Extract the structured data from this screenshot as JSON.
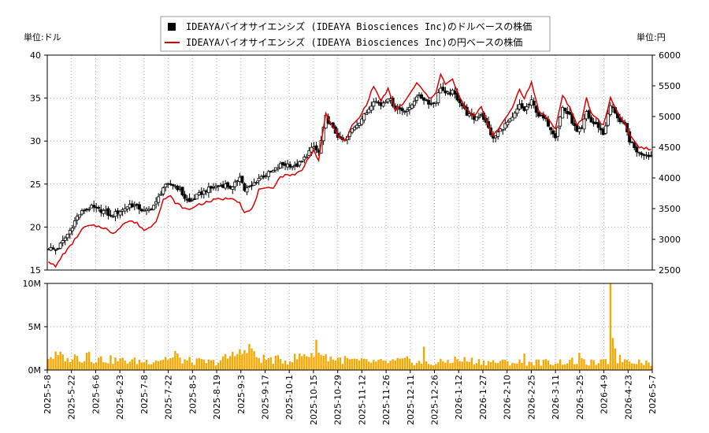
{
  "chart_data": {
    "type": "candlestick-line-bar",
    "legend": {
      "placement": "top-center",
      "items": [
        {
          "label": "IDEAYAバイオサイエンシズ (IDEAYA Biosciences Inc)のドルベースの株価",
          "symbol": "square",
          "color": "#000000"
        },
        {
          "label": "IDEAYAバイオサイエンシズ (IDEAYA Biosciences Inc)の円ベースの株価",
          "symbol": "line",
          "color": "#dd0000"
        }
      ]
    },
    "left_unit_label": "単位:ドル",
    "right_unit_label": "単位:円",
    "price_panel": {
      "y_left": {
        "min": 15,
        "max": 40,
        "ticks": [
          "15",
          "20",
          "25",
          "30",
          "35",
          "40"
        ]
      },
      "y_right": {
        "min": 2500,
        "max": 6000,
        "ticks": [
          "2500",
          "3000",
          "3500",
          "4000",
          "4500",
          "5000",
          "5500",
          "6000"
        ]
      },
      "grid": true
    },
    "volume_panel": {
      "y": {
        "min": 0,
        "max": 10000000,
        "ticks": [
          "0M",
          "5M",
          "10M"
        ]
      },
      "bar_color": "#f5a800",
      "grid": true
    },
    "x_tick_labels": [
      "2025-5-8",
      "2025-5-22",
      "2025-6-6",
      "2025-6-23",
      "2025-7-8",
      "2025-7-22",
      "2025-8-5",
      "2025-8-19",
      "2025-9-3",
      "2025-9-17",
      "2025-10-1",
      "2025-10-15",
      "2025-10-29",
      "2025-11-12",
      "2025-11-26",
      "2025-12-11",
      "2025-12-26",
      "2026-1-12",
      "2026-1-27",
      "2026-2-10",
      "2026-2-25",
      "2026-3-11",
      "2026-3-25",
      "2026-4-9",
      "2026-4-23",
      "2026-5-7"
    ],
    "usd_close_keypoints": [
      [
        0,
        17.6
      ],
      [
        3,
        17.3
      ],
      [
        6,
        18.3
      ],
      [
        9,
        19.6
      ],
      [
        12,
        21.2
      ],
      [
        15,
        22.0
      ],
      [
        18,
        22.3
      ],
      [
        21,
        22.0
      ],
      [
        24,
        21.8
      ],
      [
        26,
        21.2
      ],
      [
        28,
        21.6
      ],
      [
        31,
        22.0
      ],
      [
        34,
        22.6
      ],
      [
        37,
        22.4
      ],
      [
        40,
        21.8
      ],
      [
        42,
        22.0
      ],
      [
        45,
        22.8
      ],
      [
        48,
        24.6
      ],
      [
        51,
        25.0
      ],
      [
        53,
        24.8
      ],
      [
        55,
        24.3
      ],
      [
        57,
        23.4
      ],
      [
        59,
        22.9
      ],
      [
        62,
        23.6
      ],
      [
        66,
        24.3
      ],
      [
        70,
        24.7
      ],
      [
        74,
        24.9
      ],
      [
        77,
        24.5
      ],
      [
        80,
        26.0
      ],
      [
        82,
        24.3
      ],
      [
        85,
        24.8
      ],
      [
        88,
        25.7
      ],
      [
        91,
        26.1
      ],
      [
        94,
        26.5
      ],
      [
        97,
        27.2
      ],
      [
        100,
        27.3
      ],
      [
        103,
        27.0
      ],
      [
        106,
        27.6
      ],
      [
        109,
        28.8
      ],
      [
        111,
        29.3
      ],
      [
        113,
        28.6
      ],
      [
        116,
        32.8
      ],
      [
        119,
        31.4
      ],
      [
        122,
        30.2
      ],
      [
        124,
        30.0
      ],
      [
        127,
        31.4
      ],
      [
        130,
        32.3
      ],
      [
        133,
        33.3
      ],
      [
        136,
        34.8
      ],
      [
        139,
        34.2
      ],
      [
        142,
        35.1
      ],
      [
        145,
        33.9
      ],
      [
        148,
        33.6
      ],
      [
        151,
        33.7
      ],
      [
        154,
        35.3
      ],
      [
        157,
        34.9
      ],
      [
        160,
        34.3
      ],
      [
        162,
        34.7
      ],
      [
        164,
        36.3
      ],
      [
        166,
        35.4
      ],
      [
        169,
        35.7
      ],
      [
        172,
        34.6
      ],
      [
        175,
        33.2
      ],
      [
        178,
        32.6
      ],
      [
        181,
        33.2
      ],
      [
        184,
        31.5
      ],
      [
        186,
        30.2
      ],
      [
        188,
        31.0
      ],
      [
        191,
        31.9
      ],
      [
        194,
        32.6
      ],
      [
        197,
        34.1
      ],
      [
        199,
        33.6
      ],
      [
        202,
        34.6
      ],
      [
        205,
        33.0
      ],
      [
        208,
        32.4
      ],
      [
        210,
        31.5
      ],
      [
        212,
        30.6
      ],
      [
        215,
        33.9
      ],
      [
        218,
        32.9
      ],
      [
        221,
        31.0
      ],
      [
        223,
        31.4
      ],
      [
        225,
        33.4
      ],
      [
        227,
        32.2
      ],
      [
        230,
        31.7
      ],
      [
        232,
        30.8
      ],
      [
        235,
        34.1
      ],
      [
        237,
        33.4
      ],
      [
        239,
        32.2
      ],
      [
        241,
        31.8
      ],
      [
        243,
        30.1
      ],
      [
        245,
        29.2
      ],
      [
        247,
        28.6
      ],
      [
        250,
        28.5
      ],
      [
        252,
        28.3
      ]
    ],
    "jpy_close_keypoints": [
      [
        0,
        2650
      ],
      [
        3,
        2550
      ],
      [
        6,
        2750
      ],
      [
        9,
        2880
      ],
      [
        12,
        3050
      ],
      [
        15,
        3200
      ],
      [
        18,
        3220
      ],
      [
        21,
        3210
      ],
      [
        24,
        3180
      ],
      [
        26,
        3100
      ],
      [
        28,
        3120
      ],
      [
        31,
        3250
      ],
      [
        34,
        3300
      ],
      [
        37,
        3260
      ],
      [
        40,
        3150
      ],
      [
        42,
        3180
      ],
      [
        45,
        3300
      ],
      [
        48,
        3650
      ],
      [
        51,
        3700
      ],
      [
        53,
        3600
      ],
      [
        55,
        3550
      ],
      [
        57,
        3500
      ],
      [
        59,
        3480
      ],
      [
        62,
        3560
      ],
      [
        66,
        3600
      ],
      [
        70,
        3650
      ],
      [
        74,
        3660
      ],
      [
        77,
        3680
      ],
      [
        80,
        3600
      ],
      [
        82,
        3430
      ],
      [
        85,
        3480
      ],
      [
        88,
        3800
      ],
      [
        91,
        3820
      ],
      [
        94,
        3850
      ],
      [
        97,
        4020
      ],
      [
        100,
        4050
      ],
      [
        103,
        4060
      ],
      [
        106,
        4120
      ],
      [
        109,
        4350
      ],
      [
        111,
        4450
      ],
      [
        113,
        4280
      ],
      [
        116,
        5050
      ],
      [
        119,
        4820
      ],
      [
        122,
        4650
      ],
      [
        124,
        4600
      ],
      [
        127,
        4850
      ],
      [
        130,
        4980
      ],
      [
        133,
        5200
      ],
      [
        136,
        5500
      ],
      [
        139,
        5250
      ],
      [
        142,
        5450
      ],
      [
        145,
        5100
      ],
      [
        148,
        5200
      ],
      [
        151,
        5350
      ],
      [
        154,
        5550
      ],
      [
        157,
        5400
      ],
      [
        160,
        5280
      ],
      [
        162,
        5400
      ],
      [
        164,
        5700
      ],
      [
        166,
        5520
      ],
      [
        169,
        5600
      ],
      [
        172,
        5300
      ],
      [
        175,
        5100
      ],
      [
        178,
        5000
      ],
      [
        181,
        5150
      ],
      [
        184,
        4850
      ],
      [
        186,
        4700
      ],
      [
        188,
        4800
      ],
      [
        191,
        4950
      ],
      [
        194,
        5150
      ],
      [
        197,
        5450
      ],
      [
        199,
        5300
      ],
      [
        202,
        5550
      ],
      [
        205,
        5100
      ],
      [
        208,
        5000
      ],
      [
        210,
        4900
      ],
      [
        212,
        4800
      ],
      [
        215,
        5350
      ],
      [
        218,
        5150
      ],
      [
        221,
        4850
      ],
      [
        223,
        4950
      ],
      [
        225,
        5300
      ],
      [
        227,
        5050
      ],
      [
        230,
        4950
      ],
      [
        232,
        4850
      ],
      [
        235,
        5300
      ],
      [
        237,
        5150
      ],
      [
        239,
        5000
      ],
      [
        241,
        4900
      ],
      [
        243,
        4700
      ],
      [
        245,
        4600
      ],
      [
        247,
        4500
      ],
      [
        250,
        4480
      ],
      [
        252,
        4450
      ]
    ],
    "volume_keypoints": [
      [
        0,
        1600000
      ],
      [
        10,
        1500000
      ],
      [
        20,
        1300000
      ],
      [
        30,
        1100000
      ],
      [
        40,
        1000000
      ],
      [
        50,
        1400000
      ],
      [
        60,
        1000000
      ],
      [
        70,
        900000
      ],
      [
        80,
        2000000
      ],
      [
        90,
        1300000
      ],
      [
        100,
        1100000
      ],
      [
        110,
        2000000
      ],
      [
        120,
        1300000
      ],
      [
        130,
        1000000
      ],
      [
        140,
        900000
      ],
      [
        150,
        1100000
      ],
      [
        160,
        700000
      ],
      [
        170,
        1200000
      ],
      [
        180,
        1000000
      ],
      [
        190,
        900000
      ],
      [
        200,
        900000
      ],
      [
        210,
        900000
      ],
      [
        220,
        1000000
      ],
      [
        230,
        800000
      ],
      [
        240,
        1300000
      ],
      [
        250,
        900000
      ],
      [
        252,
        800000
      ]
    ],
    "volume_spikes": [
      [
        8,
        1400000
      ],
      [
        16,
        2000000
      ],
      [
        17,
        2100000
      ],
      [
        53,
        2200000
      ],
      [
        54,
        1900000
      ],
      [
        80,
        2400000
      ],
      [
        84,
        3000000
      ],
      [
        85,
        2500000
      ],
      [
        112,
        3500000
      ],
      [
        113,
        2000000
      ],
      [
        157,
        2700000
      ],
      [
        199,
        1900000
      ],
      [
        222,
        2000000
      ],
      [
        235,
        10000000
      ],
      [
        236,
        3700000
      ],
      [
        237,
        2500000
      ]
    ]
  }
}
